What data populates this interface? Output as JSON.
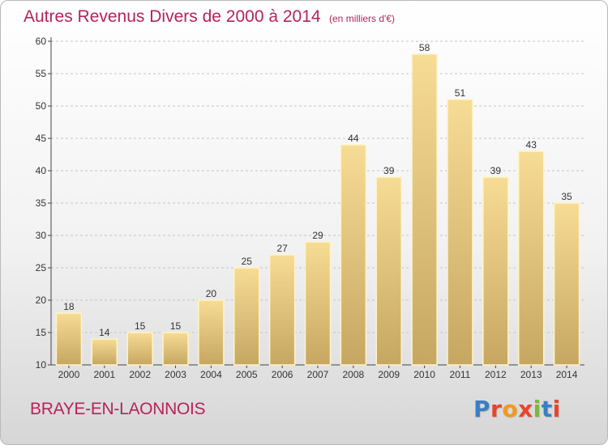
{
  "header": {
    "title": "Autres Revenus Divers de 2000 à 2014",
    "unit": "(en milliers d'€)"
  },
  "footer": {
    "place": "BRAYE-EN-LAONNOIS",
    "brand": "Proxiti",
    "brand_colors": [
      "#3a7fc2",
      "#e8452c",
      "#f29a1d",
      "#e8452c",
      "#7bb83a",
      "#3a7fc2",
      "#e8452c"
    ]
  },
  "colors": {
    "bar_top": "#f7dc95",
    "bar_bottom": "#c6a762",
    "bar_highlight": "#fff3c8",
    "grid": "#c4c4c4",
    "accent": "#b4245c"
  },
  "chart_data": {
    "type": "bar",
    "title": "Autres Revenus Divers de 2000 à 2014",
    "xlabel": "",
    "ylabel": "",
    "categories": [
      "2000",
      "2001",
      "2002",
      "2003",
      "2004",
      "2005",
      "2006",
      "2007",
      "2008",
      "2009",
      "2010",
      "2011",
      "2012",
      "2013",
      "2014"
    ],
    "values": [
      18,
      14,
      15,
      15,
      20,
      25,
      27,
      29,
      44,
      39,
      58,
      51,
      39,
      43,
      35
    ],
    "ylim": [
      10,
      60
    ],
    "yticks": [
      10,
      15,
      20,
      25,
      30,
      35,
      40,
      45,
      50,
      55,
      60
    ],
    "grid": "horizontal dashed",
    "legend": "none"
  }
}
